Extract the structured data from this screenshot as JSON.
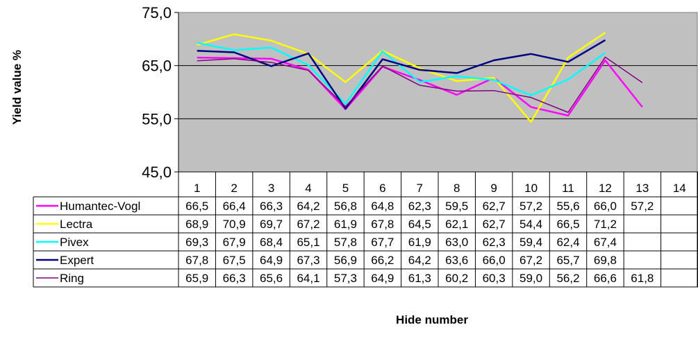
{
  "chart_data": {
    "type": "line",
    "xlabel": "Hide number",
    "ylabel": "Yield value %",
    "ylim": [
      45,
      75
    ],
    "yticks": [
      "45,0",
      "55,0",
      "65,0",
      "75,0"
    ],
    "y_tick_values": [
      45,
      55,
      65,
      75
    ],
    "categories": [
      "1",
      "2",
      "3",
      "4",
      "5",
      "6",
      "7",
      "8",
      "9",
      "10",
      "11",
      "12",
      "13",
      "14"
    ],
    "grid": "horizontal",
    "plot_background": "#C0C0C0",
    "legend": "data-table",
    "series": [
      {
        "name": "Humantec-Vogl",
        "color": "#FF00FF",
        "values": [
          66.5,
          66.4,
          66.3,
          64.2,
          56.8,
          64.8,
          62.3,
          59.5,
          62.7,
          57.2,
          55.6,
          66.0,
          57.2,
          null
        ],
        "labels": [
          "66,5",
          "66,4",
          "66,3",
          "64,2",
          "56,8",
          "64,8",
          "62,3",
          "59,5",
          "62,7",
          "57,2",
          "55,6",
          "66,0",
          "57,2",
          ""
        ]
      },
      {
        "name": "Lectra",
        "color": "#FFFF00",
        "values": [
          68.9,
          70.9,
          69.7,
          67.2,
          61.9,
          67.8,
          64.5,
          62.1,
          62.7,
          54.4,
          66.5,
          71.2,
          null,
          null
        ],
        "labels": [
          "68,9",
          "70,9",
          "69,7",
          "67,2",
          "61,9",
          "67,8",
          "64,5",
          "62,1",
          "62,7",
          "54,4",
          "66,5",
          "71,2",
          "",
          ""
        ]
      },
      {
        "name": "Pivex",
        "color": "#00FFFF",
        "values": [
          69.3,
          67.9,
          68.4,
          65.1,
          57.8,
          67.7,
          61.9,
          63.0,
          62.3,
          59.4,
          62.4,
          67.4,
          null,
          null
        ],
        "labels": [
          "69,3",
          "67,9",
          "68,4",
          "65,1",
          "57,8",
          "67,7",
          "61,9",
          "63,0",
          "62,3",
          "59,4",
          "62,4",
          "67,4",
          "",
          ""
        ]
      },
      {
        "name": "Expert",
        "color": "#000080",
        "values": [
          67.8,
          67.5,
          64.9,
          67.3,
          56.9,
          66.2,
          64.2,
          63.6,
          66.0,
          67.2,
          65.7,
          69.8,
          null,
          null
        ],
        "labels": [
          "67,8",
          "67,5",
          "64,9",
          "67,3",
          "56,9",
          "66,2",
          "64,2",
          "63,6",
          "66,0",
          "67,2",
          "65,7",
          "69,8",
          "",
          ""
        ]
      },
      {
        "name": "Ring",
        "color": "#800080",
        "values": [
          65.9,
          66.3,
          65.6,
          64.1,
          57.3,
          64.9,
          61.3,
          60.2,
          60.3,
          59.0,
          56.2,
          66.6,
          61.8,
          null
        ],
        "labels": [
          "65,9",
          "66,3",
          "65,6",
          "64,1",
          "57,3",
          "64,9",
          "61,3",
          "60,2",
          "60,3",
          "59,0",
          "56,2",
          "66,6",
          "61,8",
          ""
        ]
      }
    ]
  }
}
